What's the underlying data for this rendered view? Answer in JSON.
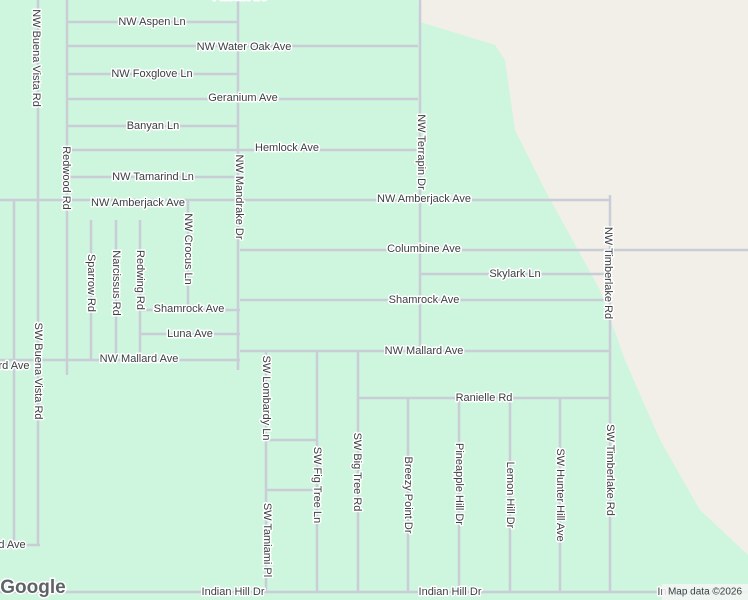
{
  "streets_horizontal": [
    "Falcon Ave",
    "NW Aspen Ln",
    "NW Water Oak Ave",
    "NW Foxglove Ln",
    "Geranium Ave",
    "Banyan Ln",
    "Hemlock Ave",
    "NW Tamarind Ln",
    "NW Amberjack Ave",
    "NW Amberjack Ave",
    "Columbine Ave",
    "Skylark Ln",
    "Shamrock Ave",
    "Shamrock Ave",
    "Luna Ave",
    "NW Mallard Ave",
    "NW Mallard Ave",
    "rd Ave",
    "Ranielle Rd",
    "d Ave",
    "Indian Hill Dr",
    "Indian Hill Dr",
    "In"
  ],
  "streets_vertical": [
    "NW Buena Vista Rd",
    "Redwood Rd",
    "NW Mandrake Dr",
    "NW Terrapin Dr",
    "NW Crocus Ln",
    "Sparrow Rd",
    "Narcissus Rd",
    "Redwing Rd",
    "SW Buena Vista Rd",
    "NW Timberlake Rd",
    "SW Lombardy Ln",
    "SW Fig Tree Ln",
    "SW Big Tree Rd",
    "Breezy Point Dr",
    "Pineapple Hill Dr",
    "Lemon Hill Dr",
    "SW Hunter Hill Ave",
    "SW Timberlake Rd",
    "SW Tamiami Pl"
  ],
  "logo": "Google",
  "attribution": "Map data ©2026"
}
